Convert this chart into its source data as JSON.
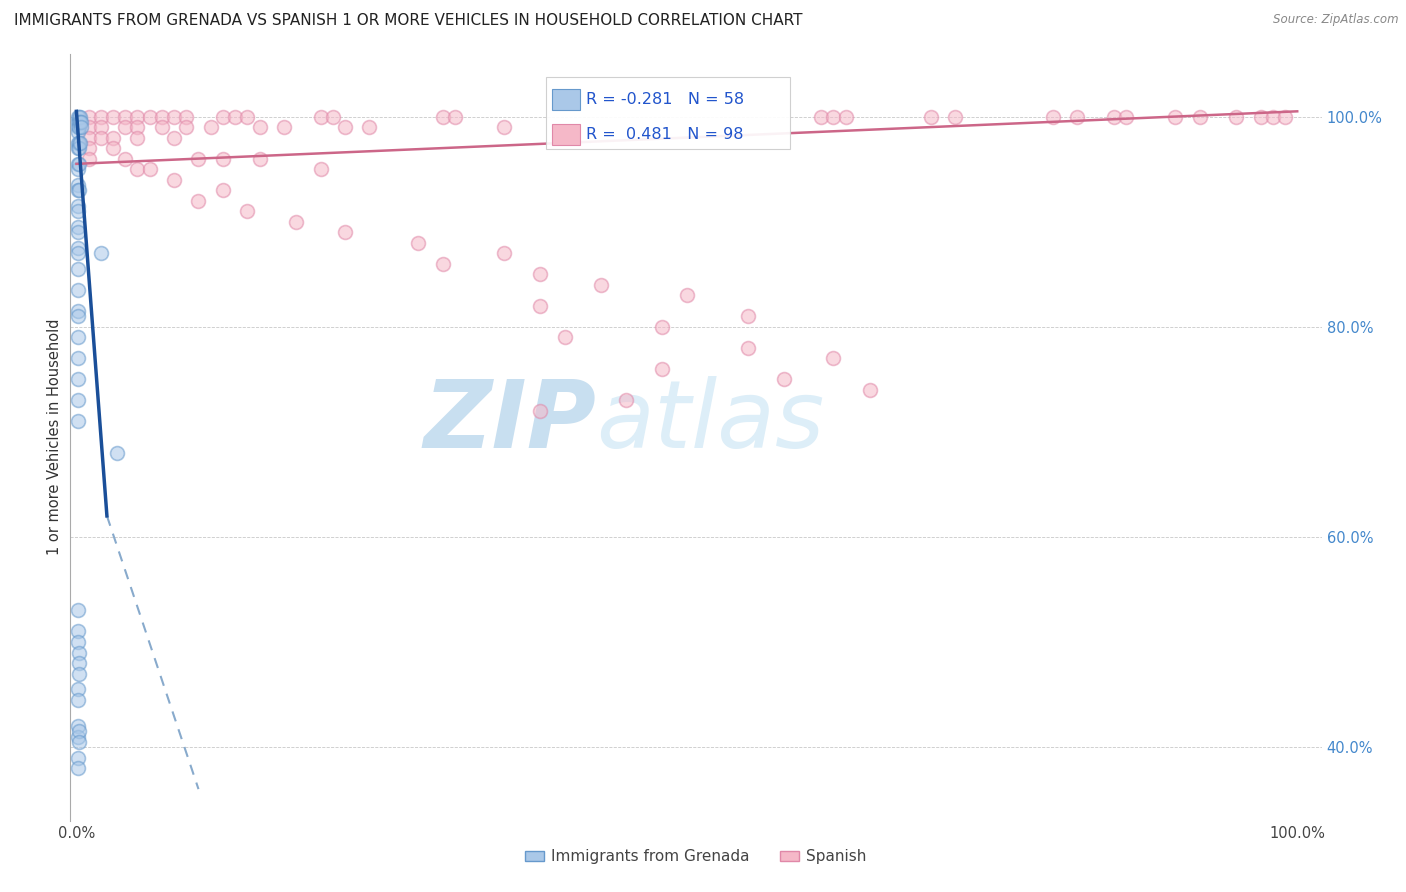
{
  "title": "IMMIGRANTS FROM GRENADA VS SPANISH 1 OR MORE VEHICLES IN HOUSEHOLD CORRELATION CHART",
  "source": "Source: ZipAtlas.com",
  "ylabel": "1 or more Vehicles in Household",
  "ytick_labels": [
    "100.0%",
    "80.0%",
    "60.0%",
    "40.0%"
  ],
  "ytick_positions": [
    1.0,
    0.8,
    0.6,
    0.4
  ],
  "legend_entries": [
    {
      "label": "Immigrants from Grenada"
    },
    {
      "label": "Spanish"
    }
  ],
  "legend_box": {
    "R1": "-0.281",
    "N1": "58",
    "R2": "0.481",
    "N2": "98"
  },
  "blue_scatter": [
    [
      0.001,
      1.0
    ],
    [
      0.001,
      0.995
    ],
    [
      0.001,
      0.99
    ],
    [
      0.001,
      0.985
    ],
    [
      0.002,
      1.0
    ],
    [
      0.002,
      0.995
    ],
    [
      0.002,
      0.99
    ],
    [
      0.003,
      1.0
    ],
    [
      0.003,
      0.995
    ],
    [
      0.004,
      0.995
    ],
    [
      0.004,
      0.99
    ],
    [
      0.001,
      0.975
    ],
    [
      0.001,
      0.97
    ],
    [
      0.002,
      0.975
    ],
    [
      0.002,
      0.97
    ],
    [
      0.003,
      0.975
    ],
    [
      0.001,
      0.955
    ],
    [
      0.001,
      0.95
    ],
    [
      0.002,
      0.955
    ],
    [
      0.001,
      0.935
    ],
    [
      0.001,
      0.93
    ],
    [
      0.002,
      0.93
    ],
    [
      0.001,
      0.915
    ],
    [
      0.001,
      0.91
    ],
    [
      0.001,
      0.895
    ],
    [
      0.001,
      0.89
    ],
    [
      0.001,
      0.875
    ],
    [
      0.001,
      0.87
    ],
    [
      0.001,
      0.855
    ],
    [
      0.001,
      0.835
    ],
    [
      0.001,
      0.815
    ],
    [
      0.001,
      0.81
    ],
    [
      0.001,
      0.79
    ],
    [
      0.001,
      0.77
    ],
    [
      0.001,
      0.75
    ],
    [
      0.001,
      0.73
    ],
    [
      0.001,
      0.71
    ],
    [
      0.02,
      0.87
    ],
    [
      0.033,
      0.68
    ],
    [
      0.001,
      0.53
    ],
    [
      0.001,
      0.51
    ],
    [
      0.001,
      0.5
    ],
    [
      0.002,
      0.49
    ],
    [
      0.002,
      0.48
    ],
    [
      0.002,
      0.47
    ],
    [
      0.001,
      0.455
    ],
    [
      0.001,
      0.445
    ],
    [
      0.001,
      0.42
    ],
    [
      0.001,
      0.41
    ],
    [
      0.002,
      0.415
    ],
    [
      0.002,
      0.405
    ],
    [
      0.001,
      0.39
    ],
    [
      0.001,
      0.38
    ]
  ],
  "pink_scatter": [
    [
      0.01,
      1.0
    ],
    [
      0.02,
      1.0
    ],
    [
      0.03,
      1.0
    ],
    [
      0.04,
      1.0
    ],
    [
      0.05,
      1.0
    ],
    [
      0.06,
      1.0
    ],
    [
      0.07,
      1.0
    ],
    [
      0.08,
      1.0
    ],
    [
      0.09,
      1.0
    ],
    [
      0.12,
      1.0
    ],
    [
      0.13,
      1.0
    ],
    [
      0.14,
      1.0
    ],
    [
      0.2,
      1.0
    ],
    [
      0.21,
      1.0
    ],
    [
      0.3,
      1.0
    ],
    [
      0.31,
      1.0
    ],
    [
      0.61,
      1.0
    ],
    [
      0.62,
      1.0
    ],
    [
      0.63,
      1.0
    ],
    [
      0.7,
      1.0
    ],
    [
      0.72,
      1.0
    ],
    [
      0.8,
      1.0
    ],
    [
      0.82,
      1.0
    ],
    [
      0.85,
      1.0
    ],
    [
      0.86,
      1.0
    ],
    [
      0.9,
      1.0
    ],
    [
      0.92,
      1.0
    ],
    [
      0.95,
      1.0
    ],
    [
      0.97,
      1.0
    ],
    [
      0.98,
      1.0
    ],
    [
      0.99,
      1.0
    ],
    [
      0.01,
      0.99
    ],
    [
      0.02,
      0.99
    ],
    [
      0.04,
      0.99
    ],
    [
      0.05,
      0.99
    ],
    [
      0.07,
      0.99
    ],
    [
      0.09,
      0.99
    ],
    [
      0.11,
      0.99
    ],
    [
      0.15,
      0.99
    ],
    [
      0.17,
      0.99
    ],
    [
      0.22,
      0.99
    ],
    [
      0.24,
      0.99
    ],
    [
      0.35,
      0.99
    ],
    [
      0.01,
      0.98
    ],
    [
      0.02,
      0.98
    ],
    [
      0.03,
      0.98
    ],
    [
      0.05,
      0.98
    ],
    [
      0.08,
      0.98
    ],
    [
      0.01,
      0.97
    ],
    [
      0.03,
      0.97
    ],
    [
      0.01,
      0.96
    ],
    [
      0.04,
      0.96
    ],
    [
      0.1,
      0.96
    ],
    [
      0.12,
      0.96
    ],
    [
      0.15,
      0.96
    ],
    [
      0.05,
      0.95
    ],
    [
      0.06,
      0.95
    ],
    [
      0.2,
      0.95
    ],
    [
      0.08,
      0.94
    ],
    [
      0.12,
      0.93
    ],
    [
      0.1,
      0.92
    ],
    [
      0.14,
      0.91
    ],
    [
      0.18,
      0.9
    ],
    [
      0.22,
      0.89
    ],
    [
      0.28,
      0.88
    ],
    [
      0.35,
      0.87
    ],
    [
      0.3,
      0.86
    ],
    [
      0.38,
      0.85
    ],
    [
      0.43,
      0.84
    ],
    [
      0.5,
      0.83
    ],
    [
      0.38,
      0.82
    ],
    [
      0.55,
      0.81
    ],
    [
      0.48,
      0.8
    ],
    [
      0.4,
      0.79
    ],
    [
      0.55,
      0.78
    ],
    [
      0.62,
      0.77
    ],
    [
      0.48,
      0.76
    ],
    [
      0.58,
      0.75
    ],
    [
      0.65,
      0.74
    ],
    [
      0.45,
      0.73
    ],
    [
      0.38,
      0.72
    ]
  ],
  "blue_line_solid": {
    "x": [
      0.0,
      0.025
    ],
    "y": [
      1.005,
      0.62
    ]
  },
  "blue_line_dash": {
    "x": [
      0.025,
      0.1
    ],
    "y": [
      0.62,
      0.36
    ]
  },
  "pink_line": {
    "x": [
      0.0,
      1.0
    ],
    "y": [
      0.955,
      1.005
    ]
  },
  "xlim": [
    -0.005,
    1.02
  ],
  "ylim": [
    0.33,
    1.06
  ],
  "scatter_size": 100,
  "scatter_alpha": 0.55,
  "scatter_linewidth": 1.2,
  "blue_dot_color": "#aac8e8",
  "blue_dot_edge": "#6699cc",
  "pink_dot_color": "#f5b8c8",
  "pink_dot_edge": "#e088a8",
  "blue_line_solid_color": "#1a4f99",
  "blue_line_dash_color": "#88aacc",
  "pink_line_color": "#cc6688",
  "watermark_zip": "ZIP",
  "watermark_atlas": "atlas",
  "watermark_color": "#d5eaf8",
  "background_color": "#ffffff"
}
